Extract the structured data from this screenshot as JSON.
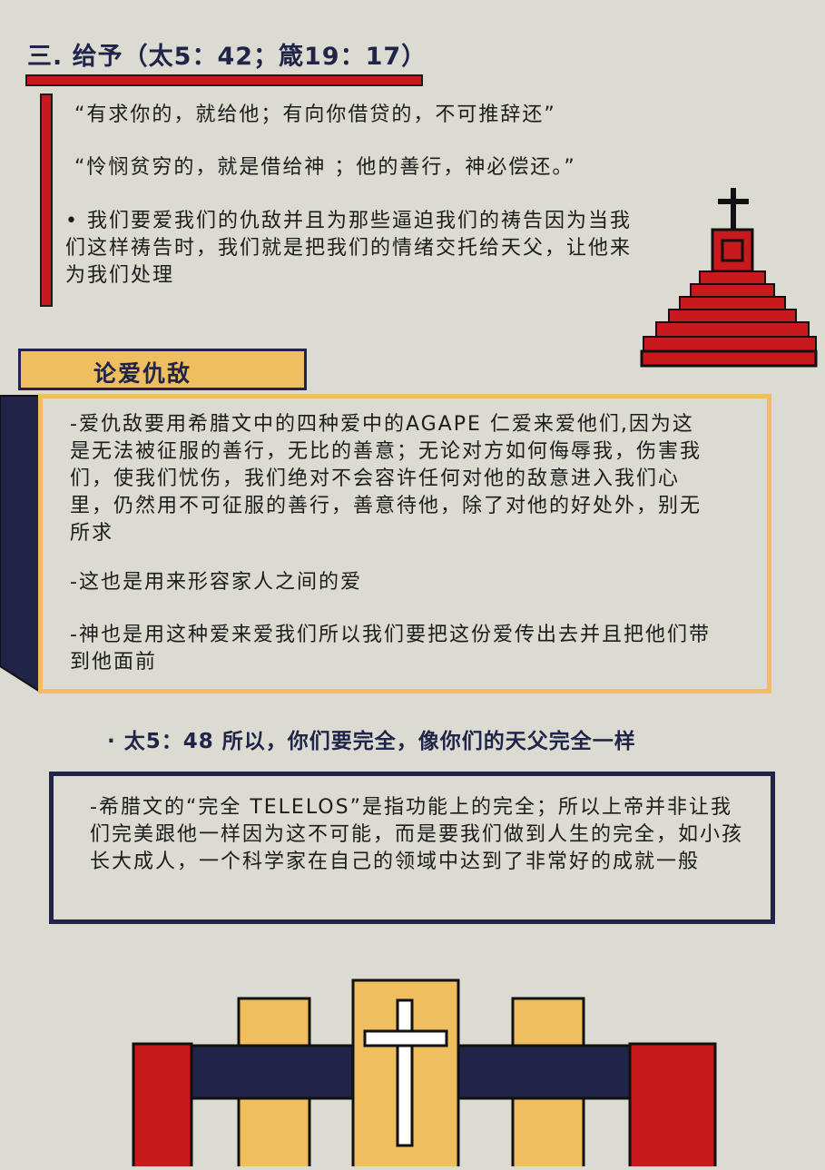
{
  "section3": {
    "heading": "三.  给予（太5：42；箴19：17）",
    "quote1": "“有求你的，就给他；有向你借贷的，不可推辞还”",
    "quote2": "“怜悯贫穷的，就是借给神 ；他的善行，神必偿还。”",
    "bullet": "• 我们要爱我们的仇敌并且为那些逼迫我们的祷告因为当我们这样祷告时，我们就是把我们的情绪交托给天父，让他来为我们处理"
  },
  "love_enemies": {
    "label": "论爱仇敌",
    "para1": " -爱仇敌要用希腊文中的四种爱中的AGAPE 仁爱来爱他们,因为这是无法被征服的善行，无比的善意；无论对方如何侮辱我，伤害我们，使我们忧伤，我们绝对不会容许任何对他的敌意进入我们心里，仍然用不可征服的善行，善意待他，除了对他的好处外，别无所求",
    "para2": "-这也是用来形容家人之间的爱",
    "para3": "-神也是用这种爱来爱我们所以我们要把这份爱传出去并且把他们带到他面前"
  },
  "verse": {
    "heading": "· 太5：48  所以，你们要完全，像你们的天父完全一样"
  },
  "telelos": {
    "text": " -希腊文的“完全 TELELOS”是指功能上的完全；所以上帝并非让我们完美跟他一样因为这不可能，而是要我们做到人生的完全，如小孩长大成人，一个科学家在自己的领域中达到了非常好的成就一般"
  },
  "colors": {
    "background": "#dcdbd2",
    "red": "#c8191c",
    "navy": "#1f2448",
    "yellow": "#efbe5e"
  },
  "icons": [
    "church-altar-icon",
    "cross-altar-icon"
  ]
}
